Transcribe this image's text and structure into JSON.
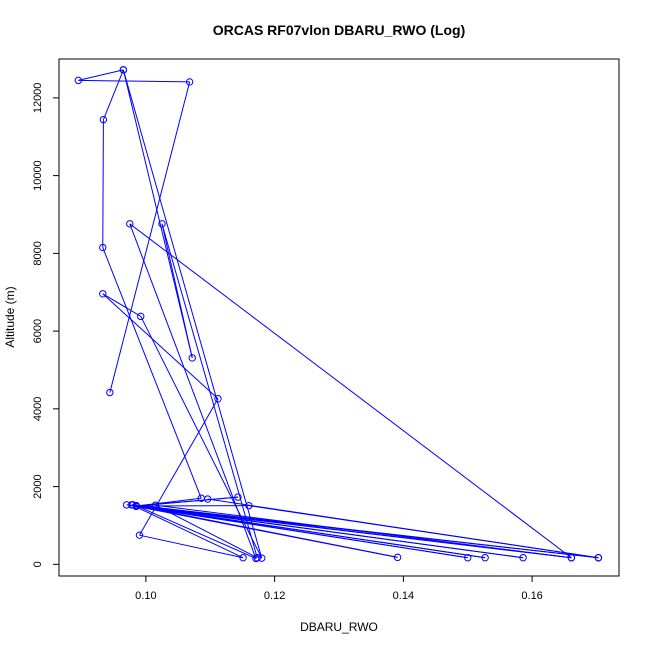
{
  "chart_data": {
    "type": "line",
    "title": "ORCAS RF07vlon DBARU_RWO (Log)",
    "xlabel": "DBARU_RWO",
    "ylabel": "Altitude (m)",
    "xlim": [
      0.0865,
      0.1735
    ],
    "ylim": [
      -300,
      13000
    ],
    "xticks": [
      0.1,
      0.12,
      0.14,
      0.16
    ],
    "xtick_labels": [
      "0.10",
      "0.12",
      "0.14",
      "0.16"
    ],
    "yticks": [
      0,
      2000,
      4000,
      6000,
      8000,
      10000,
      12000
    ],
    "ytick_labels": [
      "0",
      "2000",
      "4000",
      "6000",
      "8000",
      "10000",
      "12000"
    ],
    "grid": false,
    "line_color": "#0000ff",
    "markers": "open-circle",
    "series": [
      {
        "points": [
          [
            0.0944,
            4420
          ],
          [
            0.1068,
            12410
          ],
          [
            0.0895,
            12450
          ],
          [
            0.0965,
            12720
          ],
          [
            0.118,
            160
          ],
          [
            0.0992,
            6380
          ],
          [
            0.0933,
            6960
          ],
          [
            0.1112,
            4260
          ],
          [
            0.099,
            750
          ],
          [
            0.1151,
            170
          ],
          [
            0.0978,
            1530
          ],
          [
            0.1661,
            170
          ],
          [
            0.097,
            1530
          ],
          [
            0.1703,
            170
          ],
          [
            0.098,
            1530
          ],
          [
            0.1586,
            170
          ],
          [
            0.0985,
            1510
          ],
          [
            0.1527,
            170
          ],
          [
            0.0985,
            1500
          ],
          [
            0.15,
            170
          ],
          [
            0.0985,
            1490
          ],
          [
            0.1391,
            180
          ],
          [
            0.0985,
            1510
          ],
          [
            0.1171,
            150
          ],
          [
            0.0975,
            8760
          ],
          [
            0.1661,
            170
          ],
          [
            0.1015,
            1520
          ],
          [
            0.1173,
            170
          ],
          [
            0.1025,
            8760
          ],
          [
            0.1072,
            5310
          ],
          [
            0.0965,
            12720
          ],
          [
            0.0934,
            11440
          ],
          [
            0.0933,
            8150
          ],
          [
            0.1086,
            1700
          ],
          [
            0.0985,
            1500
          ],
          [
            0.1143,
            1730
          ],
          [
            0.0985,
            1500
          ],
          [
            0.116,
            1510
          ],
          [
            0.1703,
            170
          ],
          [
            0.1096,
            1680
          ]
        ]
      }
    ]
  }
}
